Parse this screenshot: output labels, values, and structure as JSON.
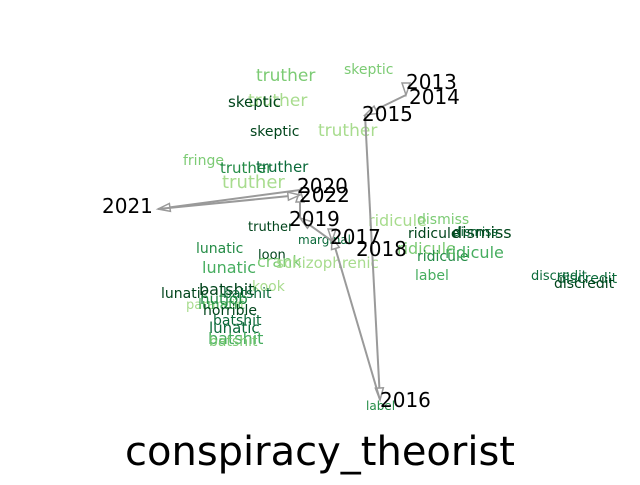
{
  "title": "conspiracy_theorist",
  "colors": {
    "path": "#9a9a9a",
    "year_label": "#000000",
    "title": "#000000",
    "word_palette": [
      "#a8dc8e",
      "#7ccb74",
      "#46ad5f",
      "#238b45",
      "#0b6a3a",
      "#00441b"
    ]
  },
  "years": [
    "2013",
    "2014",
    "2015",
    "2016",
    "2017",
    "2018",
    "2019",
    "2020",
    "2021",
    "2022"
  ],
  "words": [
    {
      "text": "truther",
      "shade": 1
    },
    {
      "text": "skeptic",
      "shade": 1
    },
    {
      "text": "truther",
      "shade": 0
    },
    {
      "text": "skeptic",
      "shade": 5
    },
    {
      "text": "truther",
      "shade": 0
    },
    {
      "text": "skeptic",
      "shade": 5
    },
    {
      "text": "fringe",
      "shade": 1
    },
    {
      "text": "truther",
      "shade": 3
    },
    {
      "text": "truther",
      "shade": 4
    },
    {
      "text": "truther",
      "shade": 0
    },
    {
      "text": "truther",
      "shade": 5
    },
    {
      "text": "lunatic",
      "shade": 3
    },
    {
      "text": "lunatic",
      "shade": 2
    },
    {
      "text": "loon",
      "shade": 5
    },
    {
      "text": "crank",
      "shade": 1
    },
    {
      "text": "kook",
      "shade": 0
    },
    {
      "text": "lunatic",
      "shade": 5
    },
    {
      "text": "batshit",
      "shade": 5
    },
    {
      "text": "batshit",
      "shade": 4
    },
    {
      "text": "paranoid",
      "shade": 0
    },
    {
      "text": "lunatic",
      "shade": 2
    },
    {
      "text": "nutjob",
      "shade": 3
    },
    {
      "text": "horrible",
      "shade": 5
    },
    {
      "text": "batshit",
      "shade": 4
    },
    {
      "text": "lunatic",
      "shade": 4
    },
    {
      "text": "batshit",
      "shade": 2
    },
    {
      "text": "batshit",
      "shade": 1
    },
    {
      "text": "marginal",
      "shade": 4
    },
    {
      "text": "schizophrenic",
      "shade": 0
    },
    {
      "text": "ridicule",
      "shade": 0
    },
    {
      "text": "dismiss",
      "shade": 1
    },
    {
      "text": "ridicule",
      "shade": 5
    },
    {
      "text": "dismiss",
      "shade": 4
    },
    {
      "text": "dismiss",
      "shade": 5
    },
    {
      "text": "ridicule",
      "shade": 1
    },
    {
      "text": "ridicule",
      "shade": 3
    },
    {
      "text": "ridicule",
      "shade": 2
    },
    {
      "text": "label",
      "shade": 2
    },
    {
      "text": "discredit",
      "shade": 4
    },
    {
      "text": "discredit",
      "shade": 4
    },
    {
      "text": "discredit",
      "shade": 5
    },
    {
      "text": "label",
      "shade": 3
    }
  ]
}
